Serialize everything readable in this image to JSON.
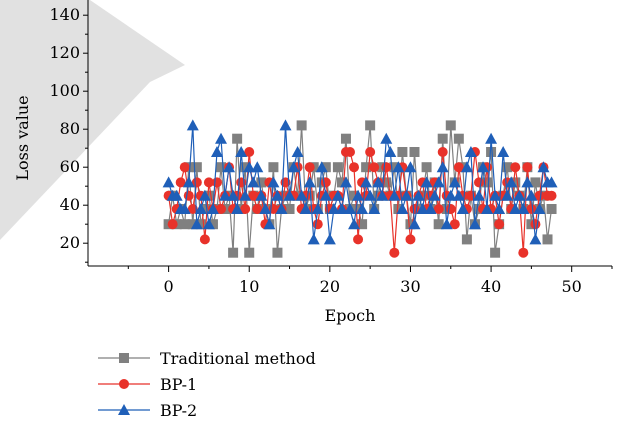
{
  "chart_data": {
    "type": "line",
    "xlabel": "Epoch",
    "ylabel": "Loss value",
    "xlim": [
      -10,
      55
    ],
    "ylim": [
      8,
      148
    ],
    "xticks": [
      0,
      10,
      20,
      30,
      40,
      50
    ],
    "yticks": [
      20,
      40,
      60,
      80,
      100,
      120,
      140
    ],
    "legend_position": "bottom-left",
    "watermark_color": "#d9d9d9",
    "series": [
      {
        "name": "Traditional method",
        "color": "#808080",
        "marker": "square",
        "x": [
          0,
          0.5,
          1,
          1.5,
          2,
          2.5,
          3,
          3.5,
          4,
          4.5,
          5,
          5.5,
          6,
          6.5,
          7,
          7.5,
          8,
          8.5,
          9,
          9.5,
          10,
          10.5,
          11,
          11.5,
          12,
          12.5,
          13,
          13.5,
          14,
          14.5,
          15,
          15.5,
          16,
          16.5,
          17,
          17.5,
          18,
          18.5,
          19,
          19.5,
          20,
          20.5,
          21,
          21.5,
          22,
          22.5,
          23,
          23.5,
          24,
          24.5,
          25,
          25.5,
          26,
          26.5,
          27,
          27.5,
          28,
          28.5,
          29,
          29.5,
          30,
          30.5,
          31,
          31.5,
          32,
          32.5,
          33,
          33.5,
          34,
          34.5,
          35,
          35.5,
          36,
          36.5,
          37,
          37.5,
          38,
          38.5,
          39,
          39.5,
          40,
          40.5,
          41,
          41.5,
          42,
          42.5,
          43,
          43.5,
          44,
          44.5,
          45,
          45.5,
          46,
          46.5,
          47,
          47.5
        ],
        "y": [
          30,
          45,
          30,
          38,
          30,
          60,
          30,
          60,
          30,
          38,
          45,
          30,
          38,
          60,
          38,
          45,
          15,
          75,
          38,
          60,
          15,
          45,
          38,
          52,
          38,
          30,
          60,
          15,
          38,
          45,
          38,
          60,
          45,
          82,
          38,
          45,
          60,
          38,
          52,
          60,
          38,
          45,
          60,
          52,
          75,
          38,
          45,
          38,
          30,
          60,
          82,
          38,
          45,
          60,
          52,
          45,
          60,
          38,
          68,
          45,
          30,
          68,
          38,
          45,
          60,
          38,
          52,
          30,
          75,
          38,
          82,
          52,
          75,
          60,
          22,
          45,
          30,
          38,
          60,
          52,
          68,
          15,
          30,
          45,
          60,
          38,
          52,
          45,
          38,
          60,
          30,
          52,
          38,
          45,
          22,
          38
        ]
      },
      {
        "name": "BP-1",
        "color": "#e8322a",
        "marker": "circle",
        "x": [
          0,
          0.5,
          1,
          1.5,
          2,
          2.5,
          3,
          3.5,
          4,
          4.5,
          5,
          5.5,
          6,
          6.5,
          7,
          7.5,
          8,
          8.5,
          9,
          9.5,
          10,
          10.5,
          11,
          11.5,
          12,
          12.5,
          13,
          13.5,
          14,
          14.5,
          15,
          15.5,
          16,
          16.5,
          17,
          17.5,
          18,
          18.5,
          19,
          19.5,
          20,
          20.5,
          21,
          21.5,
          22,
          22.5,
          23,
          23.5,
          24,
          24.5,
          25,
          25.5,
          26,
          26.5,
          27,
          27.5,
          28,
          28.5,
          29,
          29.5,
          30,
          30.5,
          31,
          31.5,
          32,
          32.5,
          33,
          33.5,
          34,
          34.5,
          35,
          35.5,
          36,
          36.5,
          37,
          37.5,
          38,
          38.5,
          39,
          39.5,
          40,
          40.5,
          41,
          41.5,
          42,
          42.5,
          43,
          43.5,
          44,
          44.5,
          45,
          45.5,
          46,
          46.5,
          47,
          47.5
        ],
        "y": [
          45,
          30,
          38,
          52,
          60,
          45,
          38,
          52,
          45,
          22,
          52,
          38,
          52,
          38,
          45,
          60,
          38,
          45,
          52,
          38,
          68,
          45,
          38,
          45,
          30,
          52,
          38,
          45,
          38,
          52,
          45,
          45,
          60,
          38,
          45,
          60,
          38,
          30,
          45,
          52,
          38,
          45,
          45,
          38,
          68,
          68,
          60,
          22,
          52,
          45,
          68,
          60,
          52,
          45,
          60,
          45,
          15,
          45,
          60,
          45,
          22,
          38,
          45,
          52,
          38,
          45,
          52,
          38,
          68,
          45,
          38,
          30,
          60,
          45,
          38,
          45,
          68,
          52,
          38,
          60,
          38,
          45,
          30,
          45,
          52,
          38,
          60,
          45,
          15,
          60,
          38,
          30,
          45,
          60,
          45,
          45
        ]
      },
      {
        "name": "BP-2",
        "color": "#1f5fb8",
        "marker": "triangle",
        "x": [
          0,
          0.5,
          1,
          1.5,
          2,
          2.5,
          3,
          3.5,
          4,
          4.5,
          5,
          5.5,
          6,
          6.5,
          7,
          7.5,
          8,
          8.5,
          9,
          9.5,
          10,
          10.5,
          11,
          11.5,
          12,
          12.5,
          13,
          13.5,
          14,
          14.5,
          15,
          15.5,
          16,
          16.5,
          17,
          17.5,
          18,
          18.5,
          19,
          19.5,
          20,
          20.5,
          21,
          21.5,
          22,
          22.5,
          23,
          23.5,
          24,
          24.5,
          25,
          25.5,
          26,
          26.5,
          27,
          27.5,
          28,
          28.5,
          29,
          29.5,
          30,
          30.5,
          31,
          31.5,
          32,
          32.5,
          33,
          33.5,
          34,
          34.5,
          35,
          35.5,
          36,
          36.5,
          37,
          37.5,
          38,
          38.5,
          39,
          39.5,
          40,
          40.5,
          41,
          41.5,
          42,
          42.5,
          43,
          43.5,
          44,
          44.5,
          45,
          45.5,
          46,
          46.5,
          47,
          47.5
        ],
        "y": [
          52,
          45,
          45,
          38,
          38,
          52,
          82,
          30,
          38,
          45,
          30,
          38,
          68,
          75,
          45,
          60,
          45,
          38,
          68,
          45,
          60,
          52,
          60,
          45,
          38,
          30,
          52,
          45,
          38,
          82,
          45,
          60,
          68,
          45,
          38,
          52,
          22,
          38,
          60,
          45,
          22,
          38,
          45,
          38,
          52,
          38,
          30,
          45,
          38,
          52,
          45,
          38,
          52,
          45,
          75,
          68,
          45,
          60,
          38,
          45,
          60,
          30,
          45,
          38,
          52,
          38,
          45,
          52,
          60,
          30,
          45,
          52,
          45,
          38,
          60,
          68,
          30,
          45,
          60,
          38,
          75,
          45,
          38,
          68,
          45,
          52,
          38,
          45,
          38,
          52,
          45,
          22,
          38,
          60,
          52,
          52
        ]
      }
    ]
  }
}
